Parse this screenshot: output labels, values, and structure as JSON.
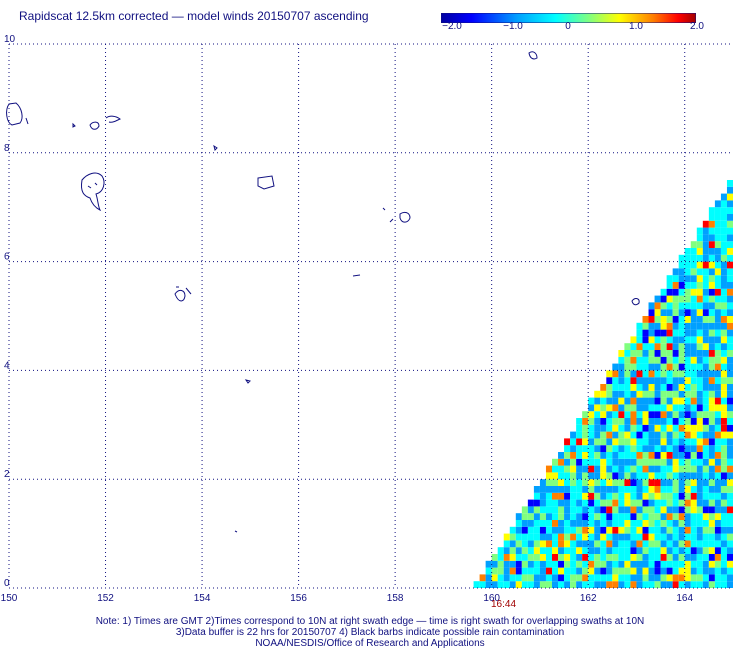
{
  "title": "Rapidscat 12.5km corrected — model winds 20150707 ascending",
  "colorbar": {
    "ticks": [
      "−2.0",
      "−1.0",
      "0",
      "1.0",
      "2.0"
    ],
    "tick_values": [
      -2.0,
      -1.0,
      0,
      1.0,
      2.0
    ],
    "colors": [
      "#0000a0",
      "#0000ff",
      "#00a0ff",
      "#00ffff",
      "#80ff80",
      "#ffff00",
      "#ff8000",
      "#ff0000",
      "#a00000"
    ]
  },
  "axes": {
    "lon_min": 150,
    "lon_max": 165,
    "lat_min": 0,
    "lat_max": 10,
    "x_ticks": [
      "150",
      "152",
      "154",
      "156",
      "158",
      "160",
      "162",
      "164"
    ],
    "x_tick_values": [
      150,
      152,
      154,
      156,
      158,
      160,
      162,
      164
    ],
    "y_ticks": [
      "0",
      "2",
      "4",
      "6",
      "8",
      "10"
    ],
    "y_tick_values": [
      0,
      2,
      4,
      6,
      8,
      10
    ],
    "grid": true
  },
  "swath": {
    "time_label": "16:44",
    "edge": [
      [
        159.6,
        0
      ],
      [
        165,
        7.6
      ]
    ]
  },
  "notes": [
    "Note: 1) Times are GMT 2)Times correspond to 10N at right swath edge — time is right swath for overlapping swaths at 10N",
    "3)Data buffer is 22 hrs for 20150707 4) Black barbs indicate possible rain contamination",
    "NOAA/NESDIS/Office of Research and Applications"
  ]
}
